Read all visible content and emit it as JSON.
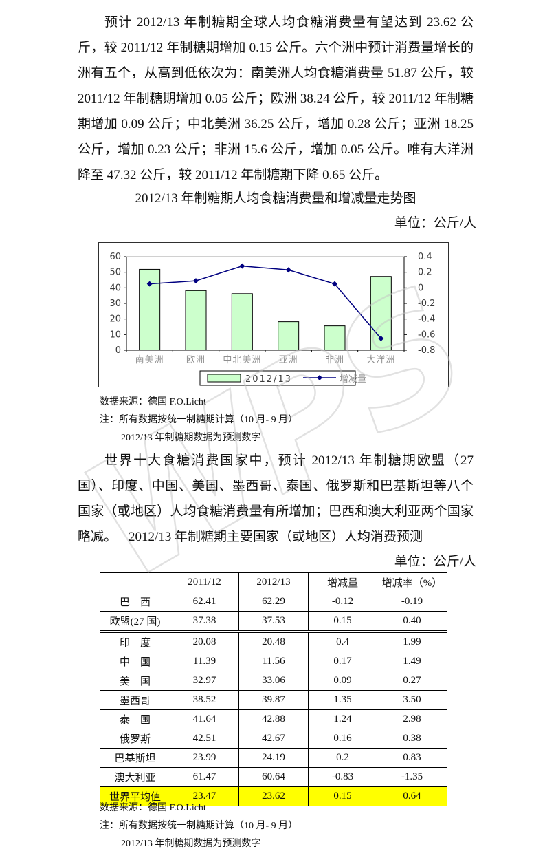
{
  "page": {
    "paragraph1": "预计 2012/13 年制糖期全球人均食糖消费量有望达到 23.62 公斤，较 2011/12 年制糖期增加 0.15 公斤。六个洲中预计消费量增长的洲有五个，从高到低依次为：南美洲人均食糖消费量 51.87 公斤，较 2011/12 年制糖期增加 0.05 公斤；欧洲 38.24 公斤，较 2011/12 年制糖期增加 0.09 公斤；中北美洲 36.25 公斤，增加 0.28 公斤；亚洲 18.25 公斤，增加 0.23 公斤；非洲 15.6 公斤，增加 0.05 公斤。唯有大洋洲降至 47.32 公斤，较 2011/12 年制糖期下降 0.65 公斤。",
    "chart_title": "2012/13 年制糖期人均食糖消费量和增减量走势图",
    "unit_label": "单位：公斤/人",
    "notes": [
      "数据来源：德国 F.O.Licht",
      "注：所有数据按统一制糖期计算（10 月- 9 月）",
      "2012/13 年制糖期数据为预测数字"
    ],
    "paragraph2": "世界十大食糖消费国家中，预计 2012/13 年制糖期欧盟（27 国）、印度、中国、美国、墨西哥、泰国、俄罗斯和巴基斯坦等八个国家（或地区）人均食糖消费量有所增加；巴西和澳大利亚两个国家略减。",
    "table_title": "2012/13 年制糖期主要国家（或地区）人均消费预测",
    "watermark": "WPS"
  },
  "chart_data": {
    "type": "bar+line",
    "title": "2012/13 年制糖期人均食糖消费量和增减量走势图",
    "unit": "单位：公斤/人",
    "categories": [
      "南美洲",
      "欧洲",
      "中北美洲",
      "亚洲",
      "非洲",
      "大洋洲"
    ],
    "series": [
      {
        "name": "2012/13",
        "type": "bar",
        "axis": "left",
        "values": [
          51.87,
          38.24,
          36.25,
          18.25,
          15.6,
          47.32
        ],
        "color": "#ccffcc"
      },
      {
        "name": "增减量",
        "type": "line",
        "axis": "right",
        "values": [
          0.05,
          0.09,
          0.28,
          0.23,
          0.05,
          -0.65
        ],
        "color": "#000080"
      }
    ],
    "left_axis": {
      "min": 0,
      "max": 60,
      "step": 10,
      "ticks": [
        "0",
        "10",
        "20",
        "30",
        "40",
        "50",
        "60"
      ]
    },
    "right_axis": {
      "min": -0.8,
      "max": 0.4,
      "step": 0.2,
      "ticks": [
        "-0.8",
        "-0.6",
        "-0.4",
        "-0.2",
        "0",
        "0.2",
        "0.4"
      ]
    },
    "legend_position": "bottom",
    "grid": false
  },
  "table": {
    "columns": [
      "",
      "2011/12",
      "2012/13",
      "增减量",
      "增减率（%）"
    ],
    "rows": [
      {
        "label": "巴　西",
        "values": [
          "62.41",
          "62.29",
          "-0.12",
          "-0.19"
        ]
      },
      {
        "label": "欧盟(27 国)",
        "values": [
          "37.38",
          "37.53",
          "0.15",
          "0.40"
        ]
      },
      {
        "label": "印　度",
        "values": [
          "20.08",
          "20.48",
          "0.4",
          "1.99"
        ],
        "split_above": true
      },
      {
        "label": "中　国",
        "values": [
          "11.39",
          "11.56",
          "0.17",
          "1.49"
        ]
      },
      {
        "label": "美　国",
        "values": [
          "32.97",
          "33.06",
          "0.09",
          "0.27"
        ]
      },
      {
        "label": "墨西哥",
        "values": [
          "38.52",
          "39.87",
          "1.35",
          "3.50"
        ]
      },
      {
        "label": "泰　国",
        "values": [
          "41.64",
          "42.88",
          "1.24",
          "2.98"
        ]
      },
      {
        "label": "俄罗斯",
        "values": [
          "42.51",
          "42.67",
          "0.16",
          "0.38"
        ]
      },
      {
        "label": "巴基斯坦",
        "values": [
          "23.99",
          "24.19",
          "0.2",
          "0.83"
        ]
      },
      {
        "label": "澳大利亚",
        "values": [
          "61.47",
          "60.64",
          "-0.83",
          "-1.35"
        ]
      },
      {
        "label": "世界平均值",
        "values": [
          "23.47",
          "23.62",
          "0.15",
          "0.64"
        ],
        "highlight": true
      }
    ],
    "highlight_color": "#ffff00"
  },
  "colors": {
    "bar_fill": "#ccffcc",
    "bar_border": "#000000",
    "line": "#000080",
    "plot_top_border": "#a0a0a0",
    "axis": "#000000",
    "category_label": "#8f8f8f",
    "highlight_row": "#ffff00",
    "watermark": "#c4c4c4"
  }
}
